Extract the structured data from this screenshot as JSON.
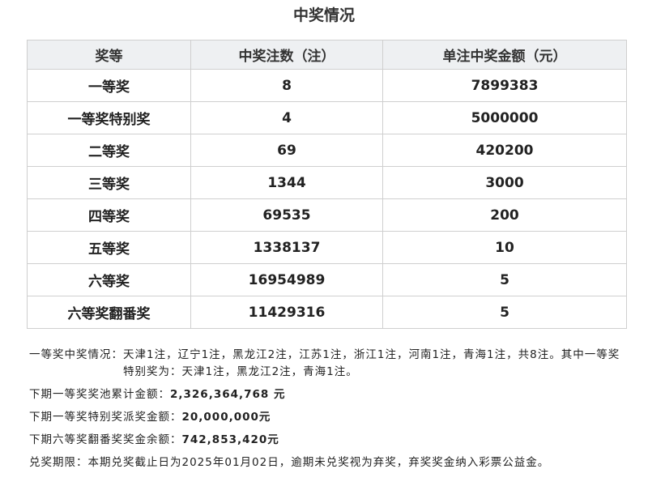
{
  "title": "中奖情况",
  "table": {
    "headers": [
      "奖等",
      "中奖注数（注）",
      "单注中奖金额（元）"
    ],
    "rows": [
      [
        "一等奖",
        "8",
        "7899383"
      ],
      [
        "一等奖特别奖",
        "4",
        "5000000"
      ],
      [
        "二等奖",
        "69",
        "420200"
      ],
      [
        "三等奖",
        "1344",
        "3000"
      ],
      [
        "四等奖",
        "69535",
        "200"
      ],
      [
        "五等奖",
        "1338137",
        "10"
      ],
      [
        "六等奖",
        "16954989",
        "5"
      ],
      [
        "六等奖翻番奖",
        "11429316",
        "5"
      ]
    ]
  },
  "notes": {
    "first_prize_label": "一等奖中奖情况：",
    "first_prize_text": "天津1注，辽宁1注，黑龙江2注，江苏1注，浙江1注，河南1注，青海1注，共8注。其中一等奖特别奖为：天津1注，黑龙江2注，青海1注。",
    "pool_label": "下期一等奖奖池累计金额：",
    "pool_value": "2,326,364,768 元",
    "special_label": "下期一等奖特别奖派奖金额：",
    "special_value": "20,000,000元",
    "double_label": "下期六等奖翻番奖奖金余额：",
    "double_value": "742,853,420元",
    "deadline_label": "兑奖期限：",
    "deadline_text": "本期兑奖截止日为2025年01月02日，逾期未兑奖视为弃奖，弃奖奖金纳入彩票公益金。"
  }
}
